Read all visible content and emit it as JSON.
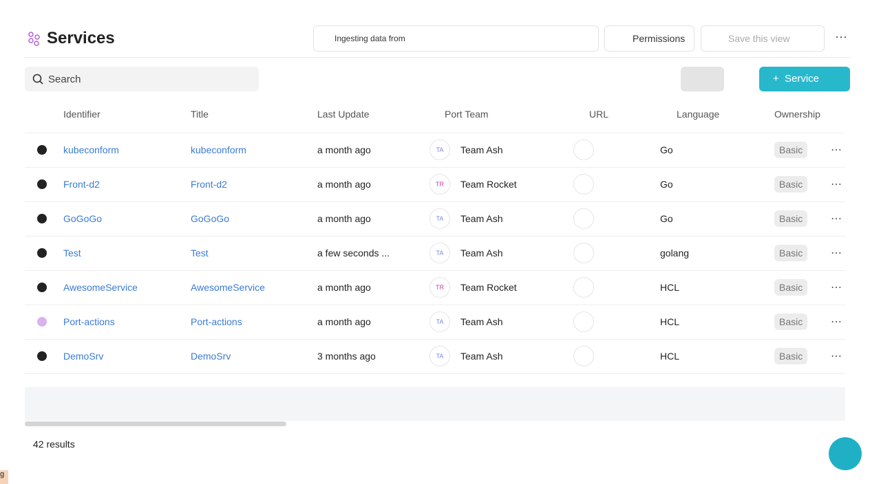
{
  "header": {
    "title": "Services",
    "ingesting_label": "Ingesting data from",
    "permissions": "Permissions",
    "save_view": "Save this view"
  },
  "toolbar": {
    "search_placeholder": "Search",
    "add_button": "Service"
  },
  "table": {
    "columns": [
      "Identifier",
      "Title",
      "Last Update",
      "Port Team",
      "URL",
      "Language",
      "Ownership"
    ],
    "rows": [
      {
        "identifier": "kubeconform",
        "title": "kubeconform",
        "last_update": "a month ago",
        "team_initials": "TA",
        "team": "Team Ash",
        "language": "Go",
        "ownership": "Basic"
      },
      {
        "identifier": "Front-d2",
        "title": "Front-d2",
        "last_update": "a month ago",
        "team_initials": "TR",
        "team": "Team Rocket",
        "language": "Go",
        "ownership": "Basic"
      },
      {
        "identifier": "GoGoGo",
        "title": "GoGoGo",
        "last_update": "a month ago",
        "team_initials": "TA",
        "team": "Team Ash",
        "language": "Go",
        "ownership": "Basic"
      },
      {
        "identifier": "Test",
        "title": "Test",
        "last_update": "a few seconds ...",
        "team_initials": "TA",
        "team": "Team Ash",
        "language": "golang",
        "ownership": "Basic"
      },
      {
        "identifier": "AwesomeService",
        "title": "AwesomeService",
        "last_update": "a month ago",
        "team_initials": "TR",
        "team": "Team Rocket",
        "language": "HCL",
        "ownership": "Basic"
      },
      {
        "identifier": "Port-actions",
        "title": "Port-actions",
        "last_update": "a month ago",
        "team_initials": "TA",
        "team": "Team Ash",
        "language": "HCL",
        "ownership": "Basic"
      },
      {
        "identifier": "DemoSrv",
        "title": "DemoSrv",
        "last_update": "3 months ago",
        "team_initials": "TA",
        "team": "Team Ash",
        "language": "HCL",
        "ownership": "Basic"
      }
    ]
  },
  "footer": {
    "results": "42 results",
    "corner_badge": "g"
  }
}
